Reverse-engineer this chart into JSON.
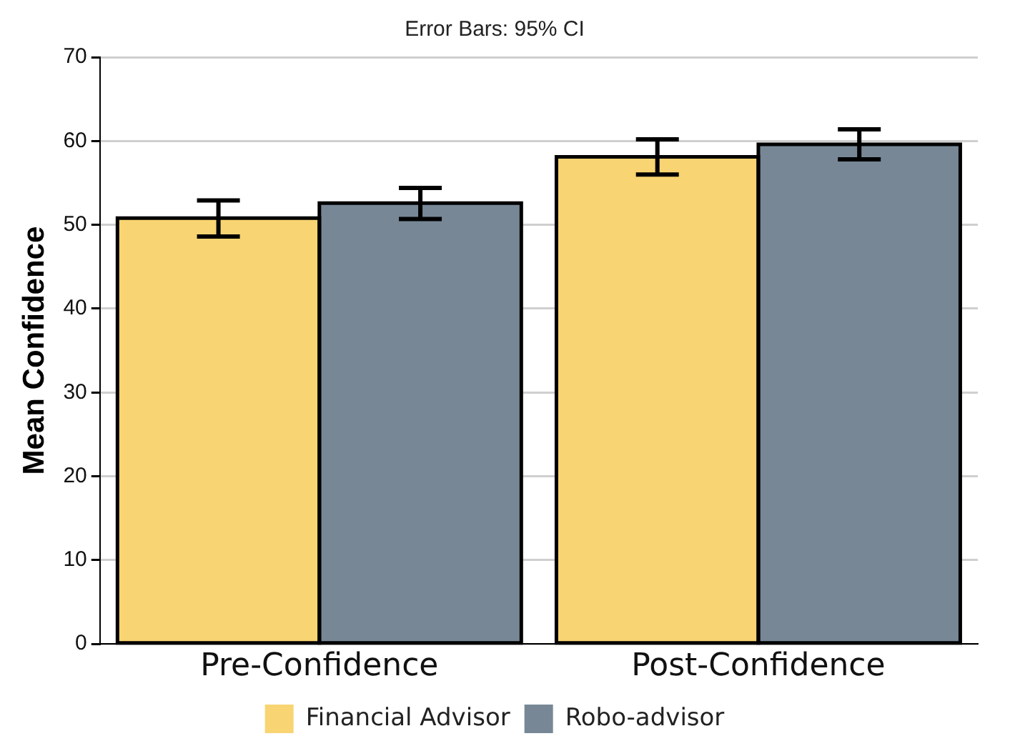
{
  "chart_data": {
    "type": "bar",
    "title": "Error Bars: 95% CI",
    "ylabel": "Mean Confidence",
    "categories": [
      "Pre-Confidence",
      "Post-Confidence"
    ],
    "series": [
      {
        "name": "Financial Advisor",
        "color": "#f8d472",
        "values": [
          50.8,
          58.1
        ],
        "errors": [
          [
            48.6,
            52.9
          ],
          [
            56.0,
            60.2
          ]
        ]
      },
      {
        "name": "Robo-advisor",
        "color": "#778796",
        "values": [
          52.6,
          59.6
        ],
        "errors": [
          [
            50.7,
            54.4
          ],
          [
            57.8,
            61.4
          ]
        ]
      }
    ],
    "ylim": [
      0,
      70
    ],
    "yticks": [
      0,
      10,
      20,
      30,
      40,
      50,
      60,
      70
    ],
    "grid": "y",
    "legend": "bottom"
  }
}
